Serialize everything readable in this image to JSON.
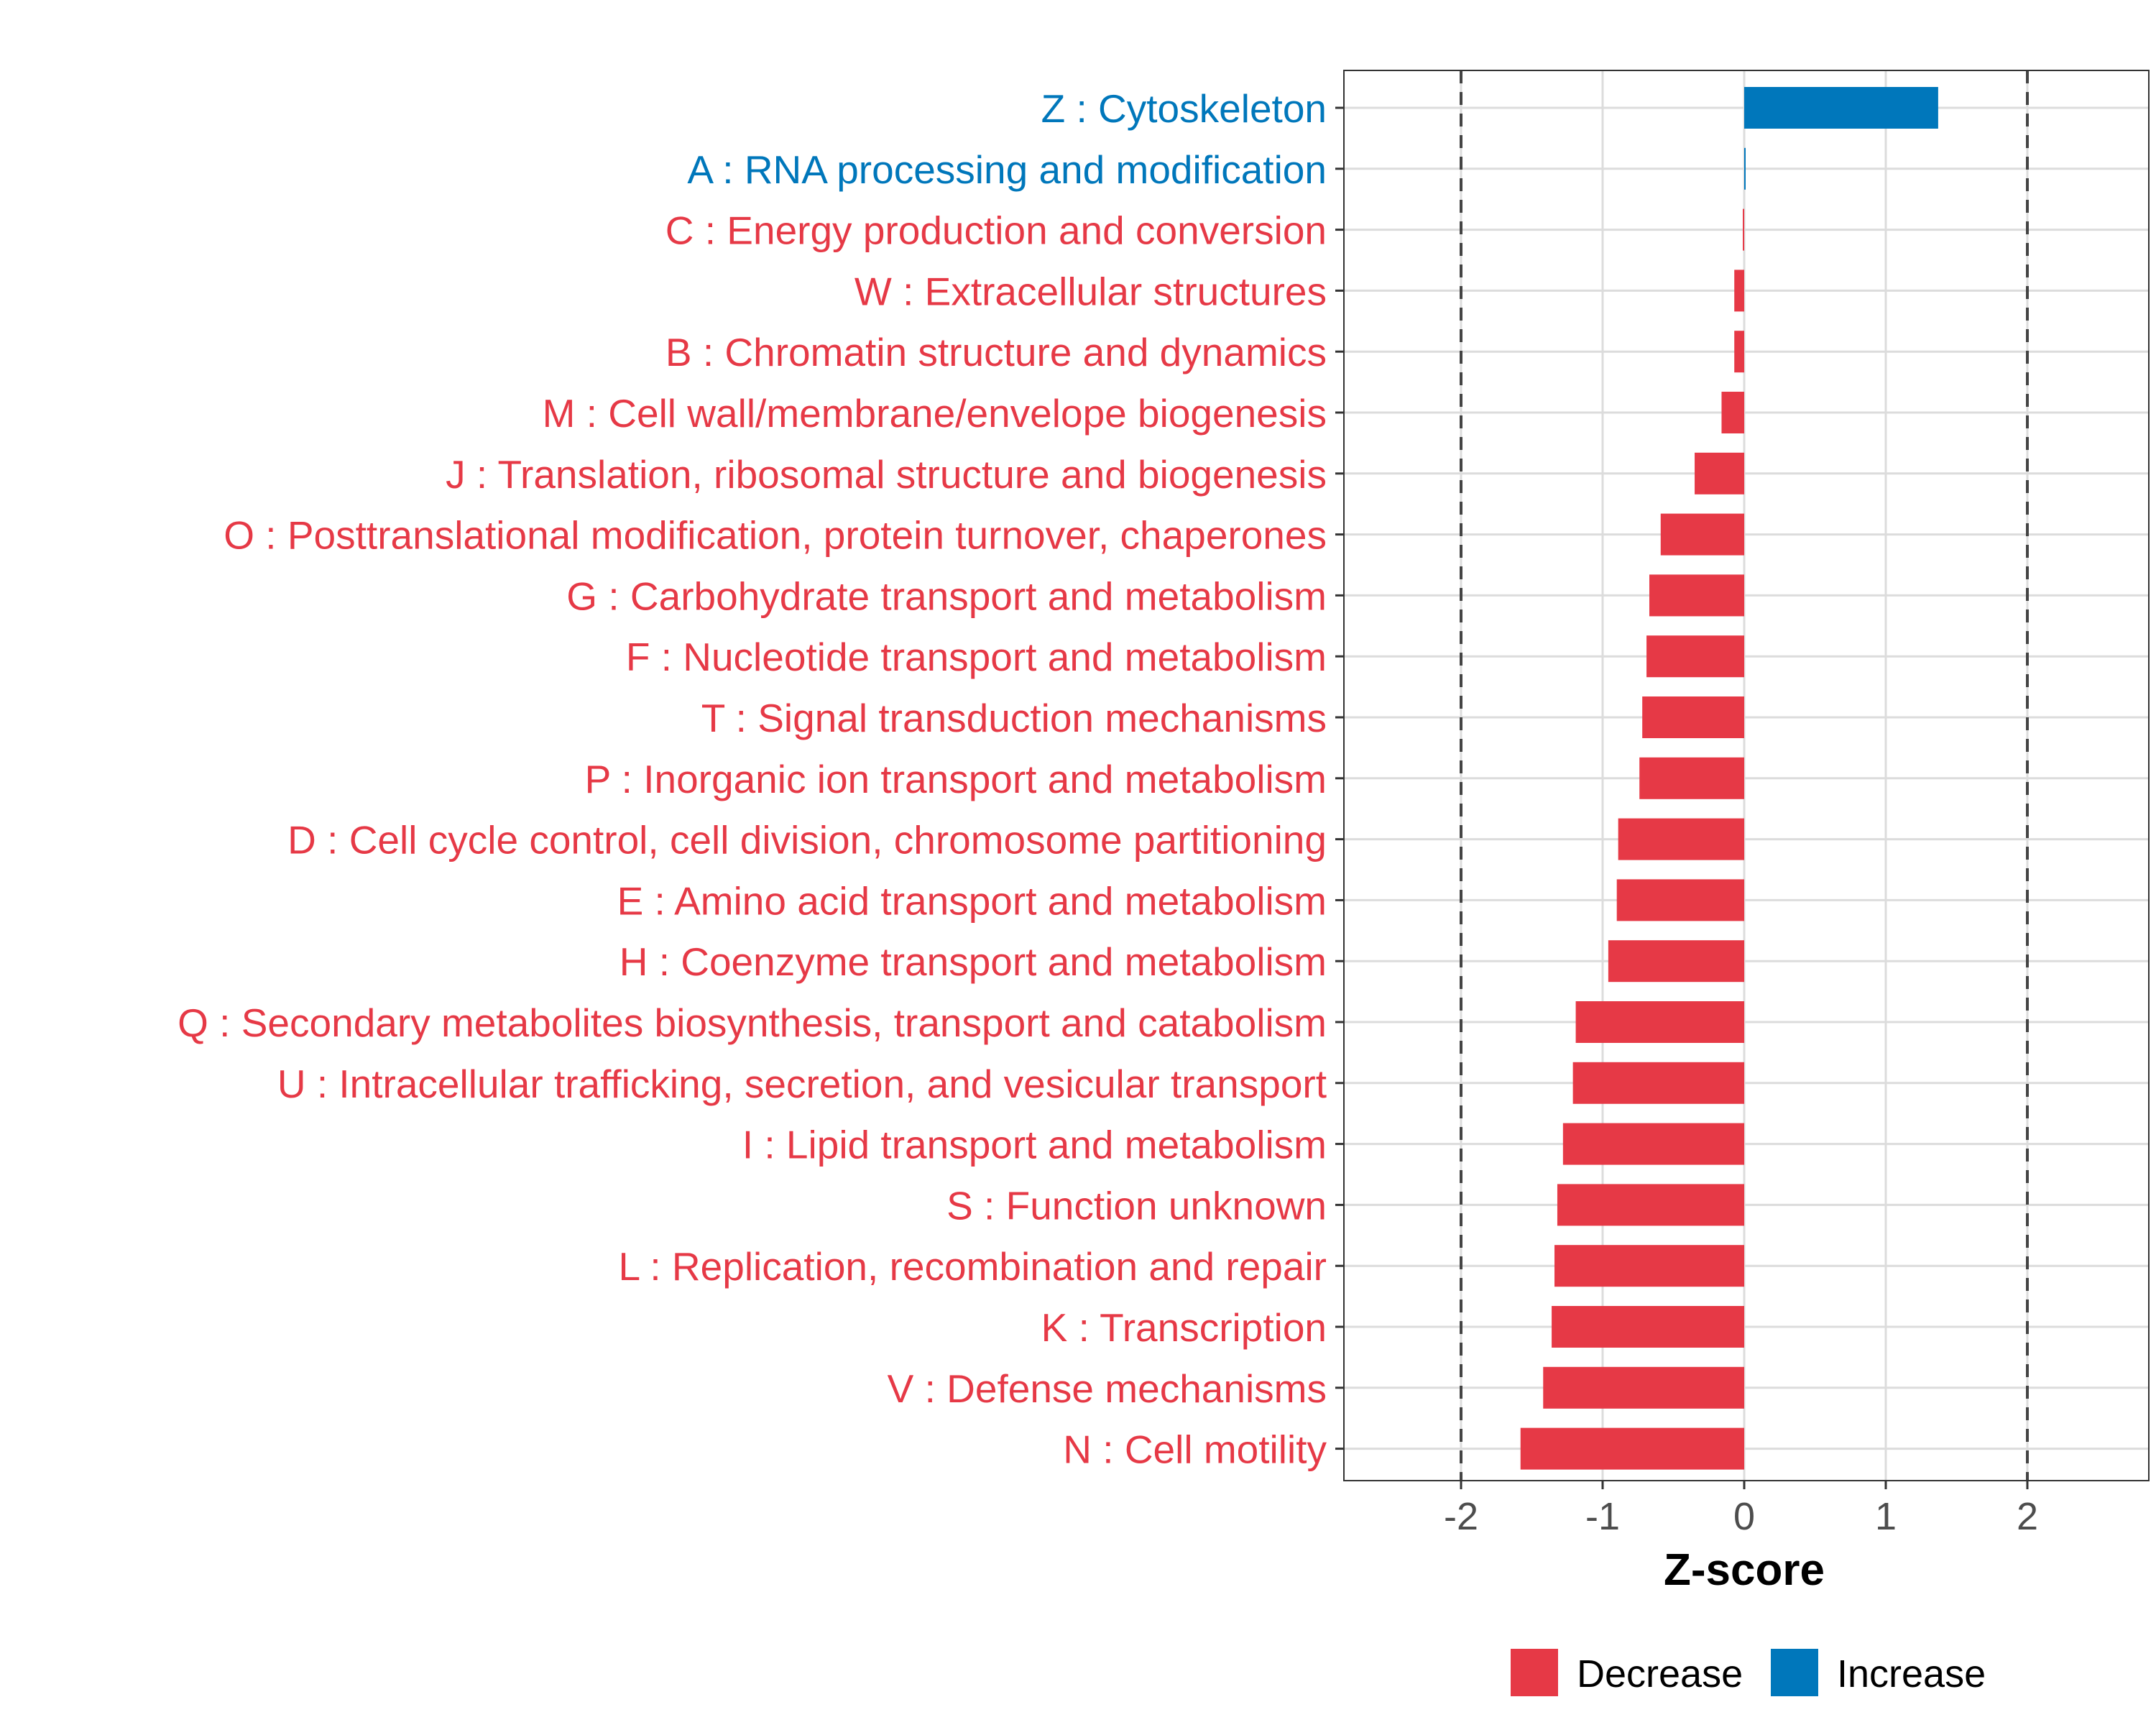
{
  "chart_data": {
    "type": "bar",
    "orientation": "horizontal",
    "title": "",
    "xlabel": "Z-score",
    "ylabel": "",
    "xlim": [
      -2.85,
      2.85
    ],
    "xticks": [
      -2,
      -1,
      0,
      1,
      2
    ],
    "xtick_labels": [
      "-2",
      "-1",
      "0",
      "1",
      "2"
    ],
    "threshold_lines": [
      -2,
      2
    ],
    "grid": true,
    "categories": [
      "Z : Cytoskeleton",
      "A : RNA processing and modification",
      "C : Energy production and conversion",
      "W : Extracellular structures",
      "B : Chromatin structure and dynamics",
      "M : Cell wall/membrane/envelope biogenesis",
      "J : Translation, ribosomal structure and biogenesis",
      "O : Posttranslational modification, protein turnover, chaperones",
      "G : Carbohydrate transport and metabolism",
      "F : Nucleotide transport and metabolism",
      "T : Signal transduction mechanisms",
      "P : Inorganic ion transport and metabolism",
      "D : Cell cycle control, cell division, chromosome partitioning",
      "E : Amino acid transport and metabolism",
      "H : Coenzyme transport and metabolism",
      "Q : Secondary metabolites biosynthesis, transport and catabolism",
      "U : Intracellular trafficking, secretion, and vesicular transport",
      "I : Lipid transport and metabolism",
      "S : Function unknown",
      "L : Replication, recombination and repair",
      "K : Transcription",
      "V : Defense mechanisms",
      "N : Cell motility"
    ],
    "values": [
      1.37,
      0.01,
      -0.01,
      -0.07,
      -0.07,
      -0.16,
      -0.35,
      -0.59,
      -0.67,
      -0.69,
      -0.72,
      -0.74,
      -0.89,
      -0.9,
      -0.96,
      -1.19,
      -1.21,
      -1.28,
      -1.32,
      -1.34,
      -1.36,
      -1.42,
      -1.58
    ],
    "groups": [
      "Increase",
      "Increase",
      "Decrease",
      "Decrease",
      "Decrease",
      "Decrease",
      "Decrease",
      "Decrease",
      "Decrease",
      "Decrease",
      "Decrease",
      "Decrease",
      "Decrease",
      "Decrease",
      "Decrease",
      "Decrease",
      "Decrease",
      "Decrease",
      "Decrease",
      "Decrease",
      "Decrease",
      "Decrease",
      "Decrease"
    ],
    "legend": {
      "position": "bottom",
      "entries": [
        {
          "label": "Decrease",
          "color": "#E63946"
        },
        {
          "label": "Increase",
          "color": "#0077BB"
        }
      ]
    }
  }
}
